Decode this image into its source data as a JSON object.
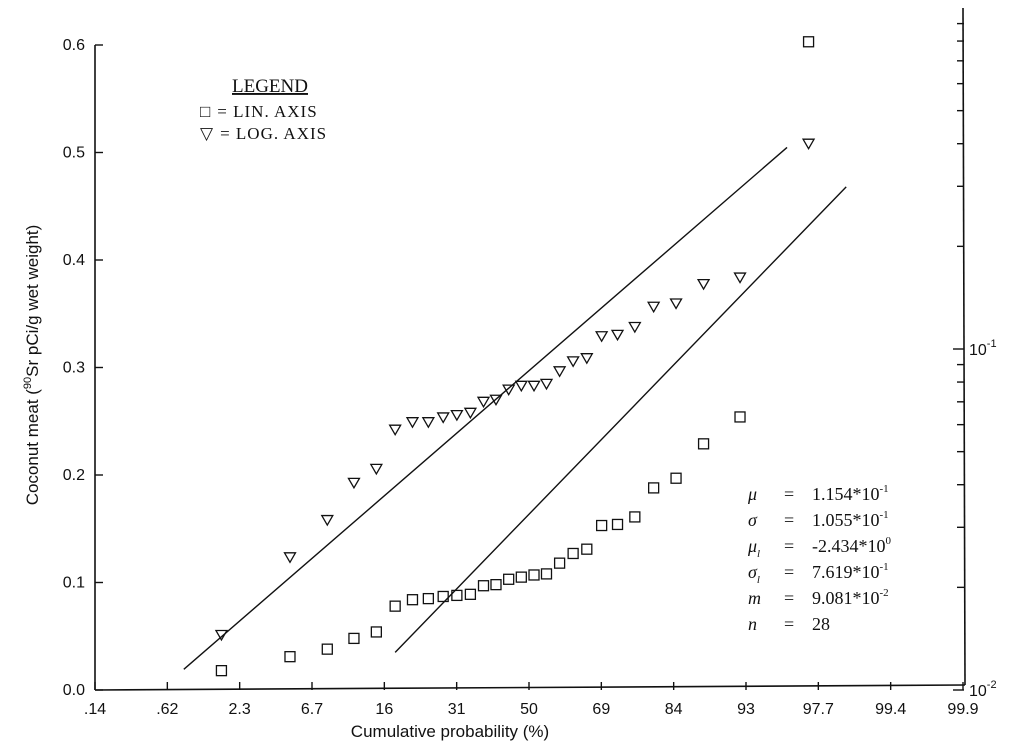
{
  "chart_data": {
    "type": "scatter",
    "xlabel": "Cumulative probability (%)",
    "ylabel_prefix": "Coconut meat (",
    "ylabel_super": "90",
    "ylabel_suffix": "Sr pCi/g wet weight)",
    "x_tick_labels": [
      ".14",
      ".62",
      "2.3",
      "6.7",
      "16",
      "31",
      "50",
      "69",
      "84",
      "93",
      "97.7",
      "99.4",
      "99.9"
    ],
    "y_left_ticks": [
      "0.0",
      "0.1",
      "0.2",
      "0.3",
      "0.4",
      "0.5",
      "0.6"
    ],
    "ylim_left": [
      0,
      0.6
    ],
    "y_right_scale": "log",
    "y_right_ticks": [
      {
        "base": "10",
        "exp": "-2",
        "value": 0.01
      },
      {
        "base": "10",
        "exp": "-1",
        "value": 0.1
      }
    ],
    "legend": {
      "title": "LEGEND",
      "entries": [
        {
          "symbol": "□",
          "label": "= LIN. AXIS"
        },
        {
          "symbol": "▽",
          "label": "= LOG. AXIS"
        }
      ]
    },
    "series": [
      {
        "marker": "square",
        "axis": "linear",
        "points": [
          [
            1.8,
            0.018
          ],
          [
            5.4,
            0.031
          ],
          [
            9.0,
            0.038
          ],
          [
            12.5,
            0.048
          ],
          [
            16.1,
            0.054
          ],
          [
            19.6,
            0.078
          ],
          [
            23.2,
            0.084
          ],
          [
            26.8,
            0.085
          ],
          [
            30.4,
            0.087
          ],
          [
            33.9,
            0.088
          ],
          [
            37.5,
            0.089
          ],
          [
            41.1,
            0.097
          ],
          [
            44.6,
            0.098
          ],
          [
            48.2,
            0.103
          ],
          [
            51.8,
            0.105
          ],
          [
            55.4,
            0.107
          ],
          [
            58.9,
            0.108
          ],
          [
            62.5,
            0.118
          ],
          [
            66.1,
            0.127
          ],
          [
            69.6,
            0.131
          ],
          [
            73.2,
            0.153
          ],
          [
            76.8,
            0.154
          ],
          [
            80.4,
            0.161
          ],
          [
            83.9,
            0.188
          ],
          [
            87.5,
            0.197
          ],
          [
            91.1,
            0.229
          ],
          [
            94.6,
            0.254
          ],
          [
            98.2,
            0.603
          ]
        ]
      },
      {
        "marker": "triangle",
        "axis": "log",
        "points": [
          [
            1.8,
            0.0145
          ],
          [
            5.4,
            0.0245
          ],
          [
            9.0,
            0.0315
          ],
          [
            12.5,
            0.0405
          ],
          [
            16.1,
            0.0445
          ],
          [
            19.6,
            0.058
          ],
          [
            23.2,
            0.061
          ],
          [
            26.8,
            0.061
          ],
          [
            30.4,
            0.063
          ],
          [
            33.9,
            0.064
          ],
          [
            37.5,
            0.065
          ],
          [
            41.1,
            0.07
          ],
          [
            44.6,
            0.071
          ],
          [
            48.2,
            0.076
          ],
          [
            51.8,
            0.078
          ],
          [
            55.4,
            0.078
          ],
          [
            58.9,
            0.079
          ],
          [
            62.5,
            0.086
          ],
          [
            66.1,
            0.092
          ],
          [
            69.6,
            0.094
          ],
          [
            73.2,
            0.109
          ],
          [
            76.8,
            0.11
          ],
          [
            80.4,
            0.116
          ],
          [
            83.9,
            0.133
          ],
          [
            87.5,
            0.136
          ],
          [
            91.1,
            0.155
          ],
          [
            94.6,
            0.162
          ],
          [
            98.2,
            0.4
          ]
        ]
      }
    ],
    "fit_lines": [
      {
        "axis": "log",
        "x": [
          0.9,
          97.4
        ],
        "y": [
          0.0115,
          0.39
        ]
      },
      {
        "axis": "linear",
        "x": [
          19.6,
          99.1
        ],
        "y": [
          0.035,
          0.468
        ]
      }
    ],
    "stats": [
      {
        "symbol": "μ",
        "sub": "",
        "value": "1.154*10",
        "exp": "-1"
      },
      {
        "symbol": "σ",
        "sub": "",
        "value": "1.055*10",
        "exp": "-1"
      },
      {
        "symbol": "μ",
        "sub": "l",
        "value": "-2.434*10",
        "exp": "0"
      },
      {
        "symbol": "σ",
        "sub": "l",
        "value": "7.619*10",
        "exp": "-1"
      },
      {
        "symbol": "m",
        "sub": "",
        "value": "9.081*10",
        "exp": "-2"
      },
      {
        "symbol": "n",
        "sub": "",
        "value": "28",
        "exp": ""
      }
    ]
  }
}
